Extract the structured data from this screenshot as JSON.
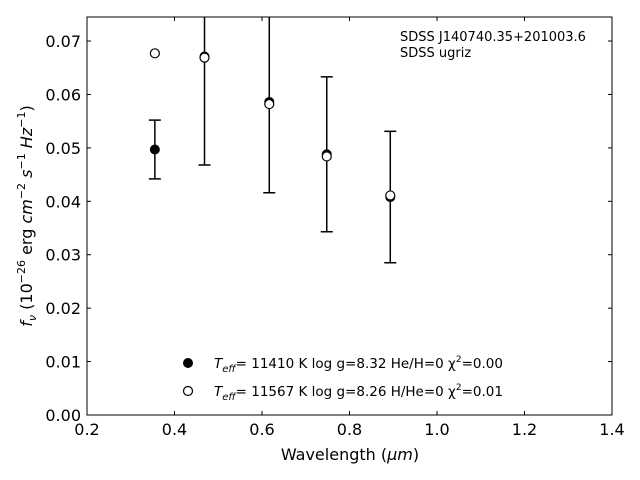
{
  "chart_data": {
    "type": "scatter",
    "xlabel_text": "Wavelength (",
    "xlabel_unit": "μm",
    "xlabel_close": ")",
    "ylabel": "f_ν (10^-26 erg cm^-2 s^-1 Hz^-1)",
    "xlim": [
      0.2,
      1.4
    ],
    "ylim": [
      0.0,
      0.0745
    ],
    "x_ticks": [
      0.2,
      0.4,
      0.6,
      0.8,
      1.0,
      1.2,
      1.4
    ],
    "x_tick_labels": [
      "0.2",
      "0.4",
      "0.6",
      "0.8",
      "1.0",
      "1.2",
      "1.4"
    ],
    "y_ticks": [
      0.0,
      0.01,
      0.02,
      0.03,
      0.04,
      0.05,
      0.06,
      0.07
    ],
    "y_tick_labels": [
      "0.00",
      "0.01",
      "0.02",
      "0.03",
      "0.04",
      "0.05",
      "0.06",
      "0.07"
    ],
    "grid": false,
    "legend_position": "lower-center",
    "annotation": [
      "SDSS J140740.35+201003.6",
      "SDSS ugriz"
    ],
    "observed": {
      "x": [
        0.3551,
        0.4686,
        0.6166,
        0.748,
        0.8932
      ],
      "y": [
        0.0497,
        0.0671,
        0.0586,
        0.0488,
        0.0408
      ],
      "yerr": [
        0.0055,
        0.0203,
        0.017,
        0.0145,
        0.0123
      ]
    },
    "series": [
      {
        "name": "T_eff= 11410 K  log g=8.32  He/H=0  χ²=0.00",
        "marker": "filled-circle",
        "x": [
          0.3551,
          0.4686,
          0.6166,
          0.748,
          0.8932
        ],
        "y": [
          0.0497,
          0.0671,
          0.0586,
          0.0488,
          0.0408
        ]
      },
      {
        "name": "T_eff= 11567 K  log g=8.26  H/He=0  χ²=0.01",
        "marker": "open-circle",
        "x": [
          0.3551,
          0.4686,
          0.6166,
          0.748,
          0.8932
        ],
        "y": [
          0.0677,
          0.0669,
          0.0582,
          0.0484,
          0.0411
        ]
      }
    ],
    "legend": [
      {
        "prefix": "T",
        "sub": "eff",
        "text": "= 11410 K  log g=8.32  He/H=0  χ",
        "sup": "2",
        "tail": "=0.00"
      },
      {
        "prefix": "T",
        "sub": "eff",
        "text": "= 11567 K  log g=8.26  H/He=0  χ",
        "sup": "2",
        "tail": "=0.01"
      }
    ],
    "colors": {
      "marker": "#000000",
      "axis": "#000000",
      "background": "#ffffff"
    }
  }
}
